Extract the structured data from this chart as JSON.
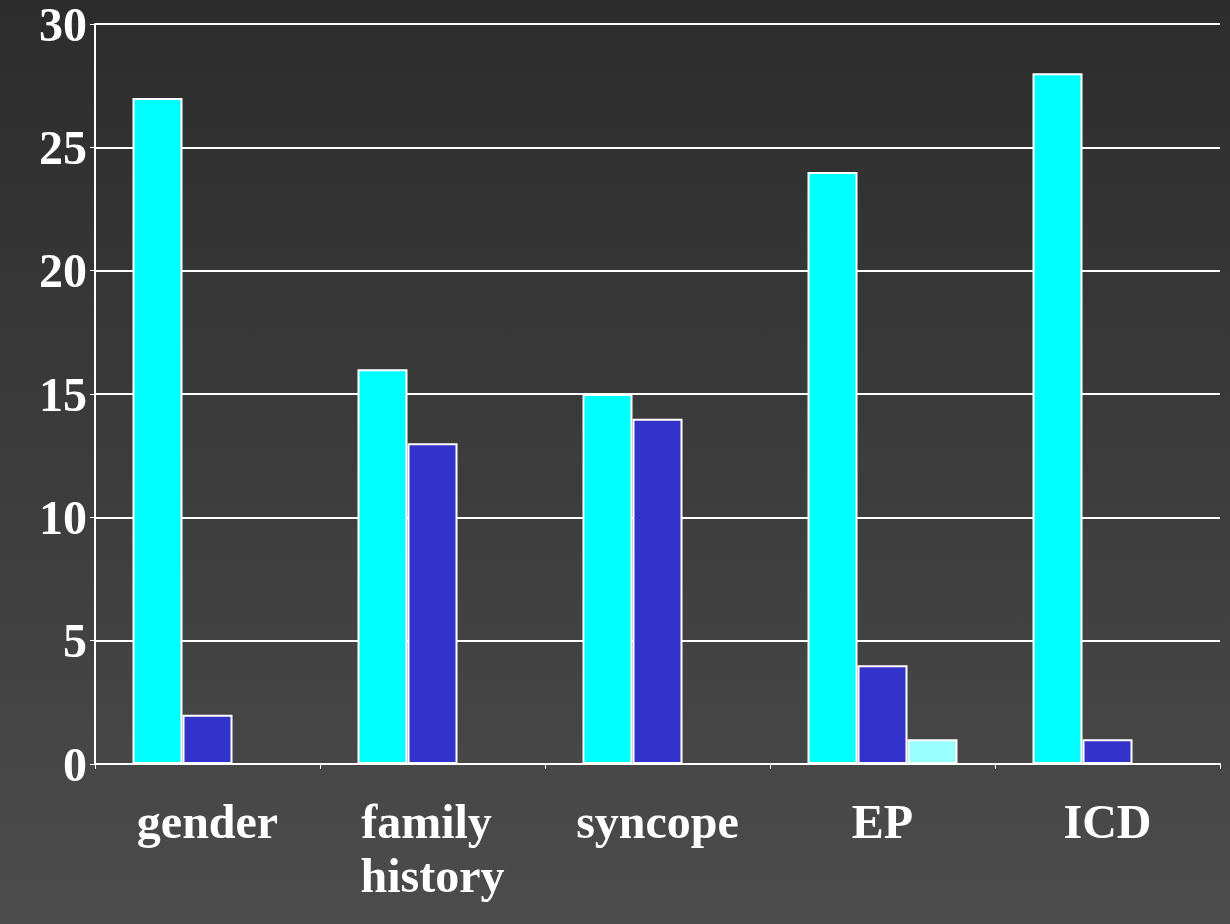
{
  "chart_data": {
    "type": "bar",
    "categories": [
      "gender",
      "family history",
      "syncope",
      "EP",
      "ICD"
    ],
    "series": [
      {
        "color": "#00ffff",
        "values": [
          27,
          16,
          15,
          24,
          28
        ]
      },
      {
        "color": "#3333cc",
        "values": [
          2,
          13,
          14,
          4,
          1
        ]
      },
      {
        "color": "#99ffff",
        "values": [
          null,
          null,
          null,
          1,
          null
        ]
      }
    ],
    "ylim": [
      0,
      30
    ],
    "yticks": [
      0,
      5,
      10,
      15,
      20,
      25,
      30
    ],
    "grid": "y"
  }
}
